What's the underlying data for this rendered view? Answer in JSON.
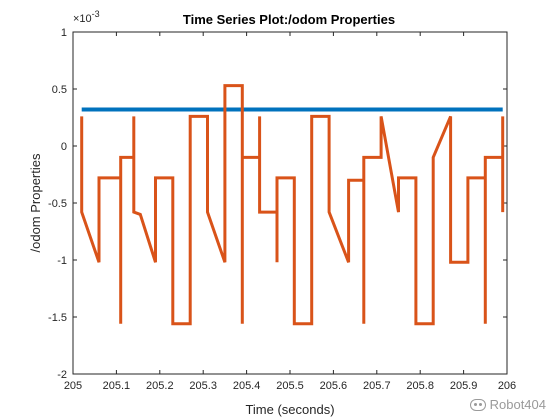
{
  "chart_data": {
    "type": "line",
    "title": "Time Series Plot:/odom Properties",
    "xlabel": "Time (seconds)",
    "ylabel": "/odom Properties",
    "y_exponent": "× 10^-3",
    "xlim": [
      205,
      206
    ],
    "ylim": [
      -2,
      1
    ],
    "x_ticks": [
      "205",
      "205.1",
      "205.2",
      "205.3",
      "205.4",
      "205.5",
      "205.6",
      "205.7",
      "205.8",
      "205.9",
      "206"
    ],
    "y_ticks": [
      "-2",
      "-1.5",
      "-1",
      "-0.5",
      "0",
      "0.5",
      "1"
    ],
    "grid": false,
    "series": [
      {
        "color": "#0072BD",
        "points": [
          [
            205.02,
            0.32
          ],
          [
            205.99,
            0.32
          ]
        ]
      },
      {
        "color": "#D95319",
        "points": [
          [
            205.02,
            0.26
          ],
          [
            205.02,
            -0.58
          ],
          [
            205.06,
            -1.02
          ],
          [
            205.06,
            -0.28
          ],
          [
            205.11,
            -0.28
          ],
          [
            205.11,
            -1.56
          ],
          [
            205.11,
            -0.1
          ],
          [
            205.14,
            -0.1
          ],
          [
            205.14,
            0.26
          ],
          [
            205.14,
            -0.58
          ],
          [
            205.155,
            -0.6
          ],
          [
            205.19,
            -1.02
          ],
          [
            205.19,
            -0.28
          ],
          [
            205.23,
            -0.28
          ],
          [
            205.23,
            -1.56
          ],
          [
            205.27,
            -1.56
          ],
          [
            205.27,
            0.26
          ],
          [
            205.31,
            0.26
          ],
          [
            205.31,
            -0.58
          ],
          [
            205.35,
            -1.02
          ],
          [
            205.35,
            0.53
          ],
          [
            205.39,
            0.53
          ],
          [
            205.39,
            -1.56
          ],
          [
            205.39,
            -0.1
          ],
          [
            205.43,
            -0.1
          ],
          [
            205.43,
            0.26
          ],
          [
            205.43,
            -0.58
          ],
          [
            205.47,
            -0.58
          ],
          [
            205.47,
            -1.02
          ],
          [
            205.47,
            -0.28
          ],
          [
            205.51,
            -0.28
          ],
          [
            205.51,
            -1.56
          ],
          [
            205.55,
            -1.56
          ],
          [
            205.55,
            0.26
          ],
          [
            205.59,
            0.26
          ],
          [
            205.59,
            -0.58
          ],
          [
            205.635,
            -1.02
          ],
          [
            205.635,
            -0.3
          ],
          [
            205.67,
            -0.3
          ],
          [
            205.67,
            -1.56
          ],
          [
            205.67,
            -0.1
          ],
          [
            205.71,
            -0.1
          ],
          [
            205.71,
            0.26
          ],
          [
            205.75,
            -0.58
          ],
          [
            205.75,
            -0.28
          ],
          [
            205.79,
            -0.28
          ],
          [
            205.79,
            -1.56
          ],
          [
            205.83,
            -1.56
          ],
          [
            205.83,
            -0.1
          ],
          [
            205.87,
            0.26
          ],
          [
            205.87,
            -1.02
          ],
          [
            205.91,
            -1.02
          ],
          [
            205.91,
            -0.28
          ],
          [
            205.95,
            -0.28
          ],
          [
            205.95,
            -1.56
          ],
          [
            205.95,
            -0.1
          ],
          [
            205.99,
            -0.1
          ],
          [
            205.99,
            0.26
          ],
          [
            205.99,
            -0.58
          ]
        ]
      }
    ]
  },
  "watermark": {
    "text": "Robot404",
    "icon": "wechat-icon"
  }
}
